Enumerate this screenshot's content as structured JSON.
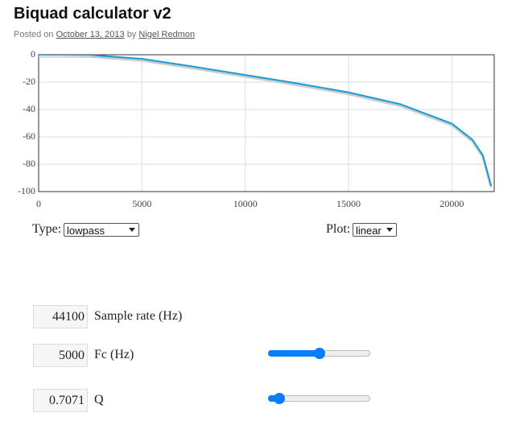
{
  "header": {
    "title": "Biquad calculator v2",
    "posted_on": "Posted on",
    "date": "October 13, 2013",
    "by": "by",
    "author": "Nigel Redmon"
  },
  "chart_data": {
    "type": "line",
    "x": [
      0,
      1000,
      2500,
      5000,
      7500,
      10000,
      12500,
      15000,
      17500,
      20000,
      21000,
      21500,
      21900
    ],
    "values": [
      0,
      0,
      -0.2,
      -3,
      -8.7,
      -14.8,
      -20.9,
      -27.5,
      -36.1,
      -50.3,
      -62.2,
      -73.5,
      -95.8
    ],
    "color": "#1a9ad6",
    "xlim": [
      0,
      22050
    ],
    "xticks": [
      0,
      5000,
      10000,
      15000,
      20000
    ],
    "ylim": [
      -100,
      0
    ],
    "yticks": [
      0,
      -20,
      -40,
      -60,
      -80,
      -100
    ],
    "grid": true
  },
  "controls": {
    "type_label": "Type:",
    "type_value": "lowpass",
    "plot_label": "Plot:",
    "plot_value": "linear",
    "sample_rate": "44100",
    "sample_rate_label": "Sample rate (Hz)",
    "fc": "5000",
    "fc_label": "Fc (Hz)",
    "q": "0.7071",
    "q_label": "Q"
  }
}
